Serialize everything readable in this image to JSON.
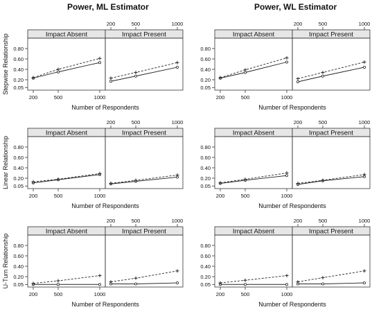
{
  "titles": {
    "left": "Power, ML Estimator",
    "right": "Power, WL Estimator"
  },
  "chart_data": [
    {
      "type": "line",
      "estimator": "Power, ML Estimator",
      "row": "Stepwise Relationship",
      "panels": [
        {
          "label": "Impact Absent",
          "x": [
            200,
            500,
            1000
          ],
          "series": [
            {
              "style": "solid",
              "values": [
                0.23,
                0.35,
                0.53
              ]
            },
            {
              "style": "dashed",
              "values": [
                0.24,
                0.4,
                0.61
              ]
            }
          ]
        },
        {
          "label": "Impact Present",
          "x": [
            200,
            500,
            1000
          ],
          "series": [
            {
              "style": "solid",
              "values": [
                0.17,
                0.27,
                0.44
              ]
            },
            {
              "style": "dashed",
              "values": [
                0.23,
                0.34,
                0.53
              ]
            }
          ]
        }
      ],
      "xlabel": "Number of Respondents",
      "ylabel": "Stepwise Relationship",
      "xticks": [
        200,
        500,
        1000
      ],
      "yticks": [
        "0.05",
        "0.20",
        "0.40",
        "0.60",
        "0.80"
      ],
      "ylim": [
        0.0,
        1.0
      ]
    },
    {
      "type": "line",
      "estimator": "Power, WL Estimator",
      "row": "Stepwise Relationship",
      "panels": [
        {
          "label": "Impact Absent",
          "x": [
            200,
            500,
            1000
          ],
          "series": [
            {
              "style": "solid",
              "values": [
                0.23,
                0.34,
                0.54
              ]
            },
            {
              "style": "dashed",
              "values": [
                0.24,
                0.39,
                0.62
              ]
            }
          ]
        },
        {
          "label": "Impact Present",
          "x": [
            200,
            500,
            1000
          ],
          "series": [
            {
              "style": "solid",
              "values": [
                0.16,
                0.27,
                0.44
              ]
            },
            {
              "style": "dashed",
              "values": [
                0.22,
                0.34,
                0.54
              ]
            }
          ]
        }
      ],
      "xlabel": "Number of Respondents",
      "ylabel": "",
      "xticks": [
        200,
        500,
        1000
      ],
      "yticks": [
        "0.05",
        "0.20",
        "0.40",
        "0.60",
        "0.80"
      ],
      "ylim": [
        0.0,
        1.0
      ]
    },
    {
      "type": "line",
      "estimator": "Power, ML Estimator",
      "row": "Linear Relationship",
      "panels": [
        {
          "label": "Impact Absent",
          "x": [
            200,
            500,
            1000
          ],
          "series": [
            {
              "style": "solid",
              "values": [
                0.11,
                0.17,
                0.27
              ]
            },
            {
              "style": "dashed",
              "values": [
                0.13,
                0.18,
                0.29
              ]
            }
          ]
        },
        {
          "label": "Impact Present",
          "x": [
            200,
            500,
            1000
          ],
          "series": [
            {
              "style": "solid",
              "values": [
                0.09,
                0.14,
                0.22
              ]
            },
            {
              "style": "dashed",
              "values": [
                0.1,
                0.16,
                0.26
              ]
            }
          ]
        }
      ],
      "xlabel": "Number of Respondents",
      "ylabel": "Linear Relationship",
      "xticks": [
        200,
        500,
        1000
      ],
      "yticks": [
        "0.05",
        "0.20",
        "0.40",
        "0.60",
        "0.80"
      ],
      "ylim": [
        0.0,
        1.0
      ]
    },
    {
      "type": "line",
      "estimator": "Power, WL Estimator",
      "row": "Linear Relationship",
      "panels": [
        {
          "label": "Impact Absent",
          "x": [
            200,
            500,
            1000
          ],
          "series": [
            {
              "style": "solid",
              "values": [
                0.1,
                0.16,
                0.25
              ]
            },
            {
              "style": "dashed",
              "values": [
                0.11,
                0.18,
                0.3
              ]
            }
          ]
        },
        {
          "label": "Impact Present",
          "x": [
            200,
            500,
            1000
          ],
          "series": [
            {
              "style": "solid",
              "values": [
                0.08,
                0.15,
                0.23
              ]
            },
            {
              "style": "dashed",
              "values": [
                0.1,
                0.16,
                0.27
              ]
            }
          ]
        }
      ],
      "xlabel": "Number of Respondents",
      "ylabel": "",
      "xticks": [
        200,
        500,
        1000
      ],
      "yticks": [
        "0.05",
        "0.20",
        "0.40",
        "0.60",
        "0.80"
      ],
      "ylim": [
        0.0,
        1.0
      ]
    },
    {
      "type": "line",
      "estimator": "Power, ML Estimator",
      "row": "U-Turn Relationship",
      "panels": [
        {
          "label": "Impact Absent",
          "x": [
            200,
            500,
            1000
          ],
          "series": [
            {
              "style": "solid",
              "values": [
                0.05,
                0.05,
                0.05
              ]
            },
            {
              "style": "dashed",
              "values": [
                0.07,
                0.12,
                0.22
              ]
            }
          ]
        },
        {
          "label": "Impact Present",
          "x": [
            200,
            500,
            1000
          ],
          "series": [
            {
              "style": "solid",
              "values": [
                0.06,
                0.06,
                0.08
              ]
            },
            {
              "style": "dashed",
              "values": [
                0.1,
                0.17,
                0.31
              ]
            }
          ]
        }
      ],
      "xlabel": "Number of Respondents",
      "ylabel": "U-Turn Relationship",
      "xticks": [
        200,
        500,
        1000
      ],
      "yticks": [
        "0.05",
        "0.20",
        "0.40",
        "0.60",
        "0.80"
      ],
      "ylim": [
        0.0,
        1.0
      ]
    },
    {
      "type": "line",
      "estimator": "Power, WL Estimator",
      "row": "U-Turn Relationship",
      "panels": [
        {
          "label": "Impact Absent",
          "x": [
            200,
            500,
            1000
          ],
          "series": [
            {
              "style": "solid",
              "values": [
                0.05,
                0.05,
                0.05
              ]
            },
            {
              "style": "dashed",
              "values": [
                0.08,
                0.13,
                0.22
              ]
            }
          ]
        },
        {
          "label": "Impact Present",
          "x": [
            200,
            500,
            1000
          ],
          "series": [
            {
              "style": "solid",
              "values": [
                0.06,
                0.06,
                0.08
              ]
            },
            {
              "style": "dashed",
              "values": [
                0.1,
                0.18,
                0.31
              ]
            }
          ]
        }
      ],
      "xlabel": "Number of Respondents",
      "ylabel": "",
      "xticks": [
        200,
        500,
        1000
      ],
      "yticks": [
        "0.05",
        "0.20",
        "0.40",
        "0.60",
        "0.80"
      ],
      "ylim": [
        0.0,
        1.0
      ]
    }
  ]
}
